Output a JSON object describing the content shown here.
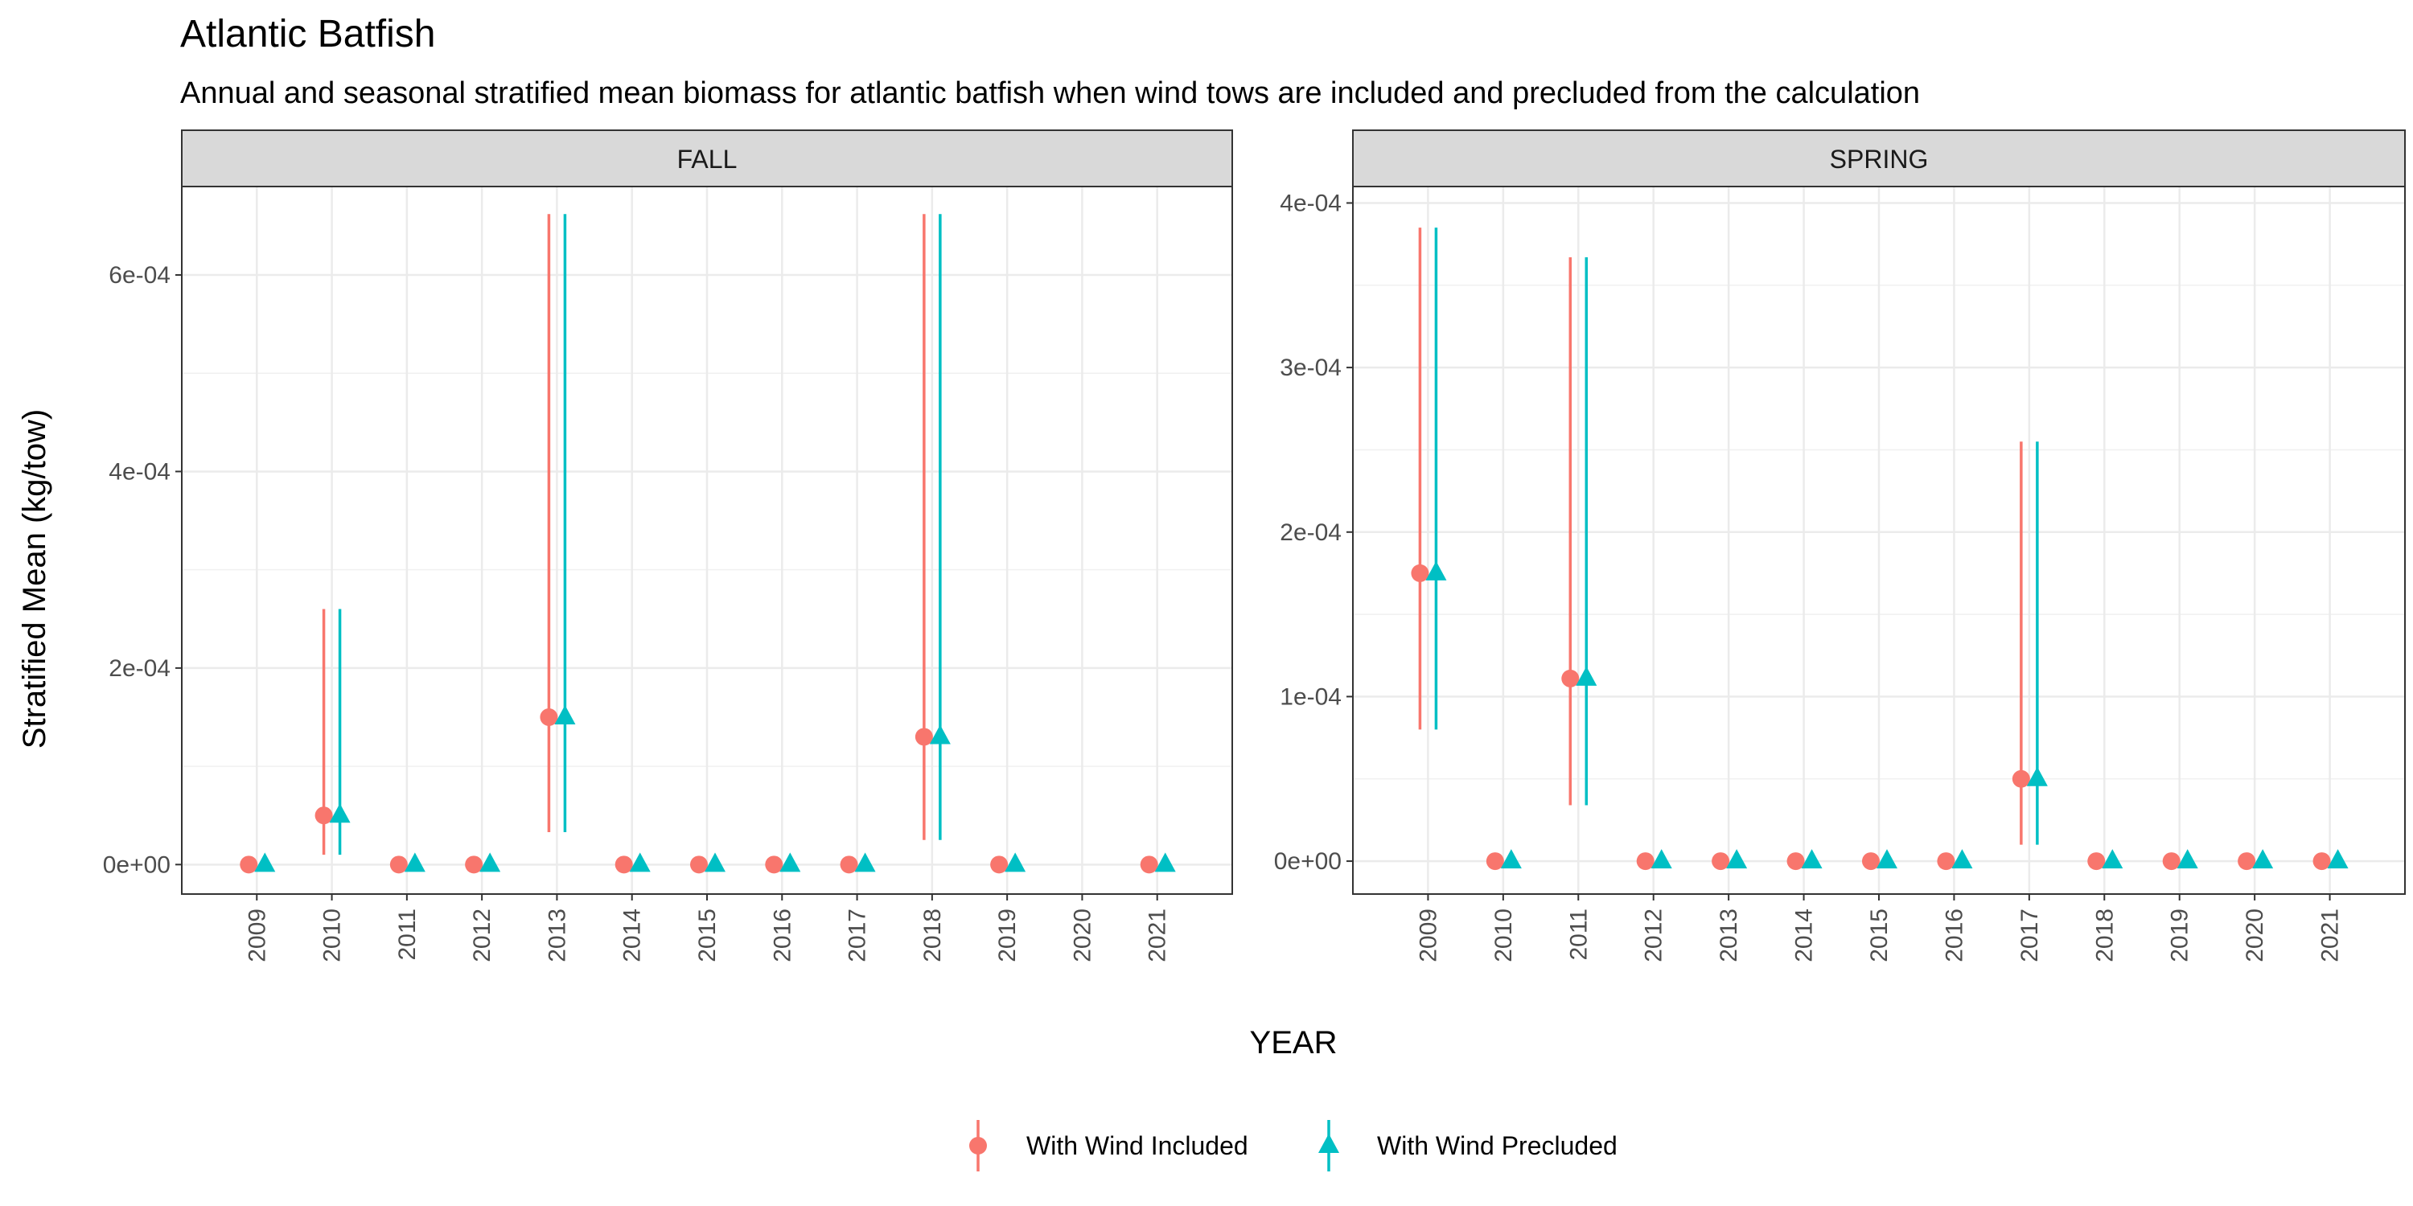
{
  "title": "Atlantic Batfish",
  "subtitle": "Annual and seasonal stratified mean biomass for atlantic batfish when wind tows are included and precluded from the calculation",
  "xlabel": "YEAR",
  "ylabel": "Stratified Mean (kg/tow)",
  "legend": {
    "placement": "bottom",
    "items": [
      {
        "label": "With Wind Included",
        "shape": "circle",
        "color": "#F8766D"
      },
      {
        "label": "With Wind Precluded",
        "shape": "triangle",
        "color": "#00BFC4"
      }
    ]
  },
  "chart_data": {
    "type": "scatter",
    "chart_kind": "point-range",
    "grid": true,
    "panels": [
      {
        "strip_label": "FALL",
        "categories": [
          "2009",
          "2010",
          "2011",
          "2012",
          "2013",
          "2014",
          "2015",
          "2016",
          "2017",
          "2018",
          "2019",
          "2020",
          "2021"
        ],
        "ylim": [
          -3e-05,
          0.00069
        ],
        "y_ticks": [
          0,
          0.0002,
          0.0004,
          0.0006
        ],
        "y_tick_labels": [
          "0e+00",
          "2e-04",
          "4e-04",
          "6e-04"
        ],
        "series": [
          {
            "name": "With Wind Included",
            "points": [
              {
                "x": "2009",
                "y": 0,
                "lo": 0,
                "hi": 0
              },
              {
                "x": "2010",
                "y": 5e-05,
                "lo": 1e-05,
                "hi": 0.00026
              },
              {
                "x": "2011",
                "y": 0,
                "lo": 0,
                "hi": 0
              },
              {
                "x": "2012",
                "y": 0,
                "lo": 0,
                "hi": 0
              },
              {
                "x": "2013",
                "y": 0.00015,
                "lo": 3.3e-05,
                "hi": 0.000662
              },
              {
                "x": "2014",
                "y": 0,
                "lo": 0,
                "hi": 0
              },
              {
                "x": "2015",
                "y": 0,
                "lo": 0,
                "hi": 0
              },
              {
                "x": "2016",
                "y": 0,
                "lo": 0,
                "hi": 0
              },
              {
                "x": "2017",
                "y": 0,
                "lo": 0,
                "hi": 0
              },
              {
                "x": "2018",
                "y": 0.00013,
                "lo": 2.5e-05,
                "hi": 0.000662
              },
              {
                "x": "2019",
                "y": 0,
                "lo": 0,
                "hi": 0
              },
              {
                "x": "2021",
                "y": 0,
                "lo": 0,
                "hi": 0
              }
            ]
          },
          {
            "name": "With Wind Precluded",
            "points": [
              {
                "x": "2009",
                "y": 0,
                "lo": 0,
                "hi": 0
              },
              {
                "x": "2010",
                "y": 5e-05,
                "lo": 1e-05,
                "hi": 0.00026
              },
              {
                "x": "2011",
                "y": 0,
                "lo": 0,
                "hi": 0
              },
              {
                "x": "2012",
                "y": 0,
                "lo": 0,
                "hi": 0
              },
              {
                "x": "2013",
                "y": 0.00015,
                "lo": 3.3e-05,
                "hi": 0.000662
              },
              {
                "x": "2014",
                "y": 0,
                "lo": 0,
                "hi": 0
              },
              {
                "x": "2015",
                "y": 0,
                "lo": 0,
                "hi": 0
              },
              {
                "x": "2016",
                "y": 0,
                "lo": 0,
                "hi": 0
              },
              {
                "x": "2017",
                "y": 0,
                "lo": 0,
                "hi": 0
              },
              {
                "x": "2018",
                "y": 0.00013,
                "lo": 2.5e-05,
                "hi": 0.000662
              },
              {
                "x": "2019",
                "y": 0,
                "lo": 0,
                "hi": 0
              },
              {
                "x": "2021",
                "y": 0,
                "lo": 0,
                "hi": 0
              }
            ]
          }
        ]
      },
      {
        "strip_label": "SPRING",
        "categories": [
          "2009",
          "2010",
          "2011",
          "2012",
          "2013",
          "2014",
          "2015",
          "2016",
          "2017",
          "2018",
          "2019",
          "2020",
          "2021"
        ],
        "ylim": [
          -2e-05,
          0.00041
        ],
        "y_ticks": [
          0,
          0.0001,
          0.0002,
          0.0003,
          0.0004
        ],
        "y_tick_labels": [
          "0e+00",
          "1e-04",
          "2e-04",
          "3e-04",
          "4e-04"
        ],
        "series": [
          {
            "name": "With Wind Included",
            "points": [
              {
                "x": "2009",
                "y": 0.000175,
                "lo": 8e-05,
                "hi": 0.000385
              },
              {
                "x": "2010",
                "y": 0,
                "lo": 0,
                "hi": 0
              },
              {
                "x": "2011",
                "y": 0.000111,
                "lo": 3.4e-05,
                "hi": 0.000367
              },
              {
                "x": "2012",
                "y": 0,
                "lo": 0,
                "hi": 0
              },
              {
                "x": "2013",
                "y": 0,
                "lo": 0,
                "hi": 0
              },
              {
                "x": "2014",
                "y": 0,
                "lo": 0,
                "hi": 0
              },
              {
                "x": "2015",
                "y": 0,
                "lo": 0,
                "hi": 0
              },
              {
                "x": "2016",
                "y": 0,
                "lo": 0,
                "hi": 0
              },
              {
                "x": "2017",
                "y": 5e-05,
                "lo": 1e-05,
                "hi": 0.000255
              },
              {
                "x": "2018",
                "y": 0,
                "lo": 0,
                "hi": 0
              },
              {
                "x": "2019",
                "y": 0,
                "lo": 0,
                "hi": 0
              },
              {
                "x": "2020",
                "y": 0,
                "lo": 0,
                "hi": 0
              },
              {
                "x": "2021",
                "y": 0,
                "lo": 0,
                "hi": 0
              }
            ]
          },
          {
            "name": "With Wind Precluded",
            "points": [
              {
                "x": "2009",
                "y": 0.000175,
                "lo": 8e-05,
                "hi": 0.000385
              },
              {
                "x": "2010",
                "y": 0,
                "lo": 0,
                "hi": 0
              },
              {
                "x": "2011",
                "y": 0.000111,
                "lo": 3.4e-05,
                "hi": 0.000367
              },
              {
                "x": "2012",
                "y": 0,
                "lo": 0,
                "hi": 0
              },
              {
                "x": "2013",
                "y": 0,
                "lo": 0,
                "hi": 0
              },
              {
                "x": "2014",
                "y": 0,
                "lo": 0,
                "hi": 0
              },
              {
                "x": "2015",
                "y": 0,
                "lo": 0,
                "hi": 0
              },
              {
                "x": "2016",
                "y": 0,
                "lo": 0,
                "hi": 0
              },
              {
                "x": "2017",
                "y": 5e-05,
                "lo": 1e-05,
                "hi": 0.000255
              },
              {
                "x": "2018",
                "y": 0,
                "lo": 0,
                "hi": 0
              },
              {
                "x": "2019",
                "y": 0,
                "lo": 0,
                "hi": 0
              },
              {
                "x": "2020",
                "y": 0,
                "lo": 0,
                "hi": 0
              },
              {
                "x": "2021",
                "y": 0,
                "lo": 0,
                "hi": 0
              }
            ]
          }
        ]
      }
    ]
  }
}
